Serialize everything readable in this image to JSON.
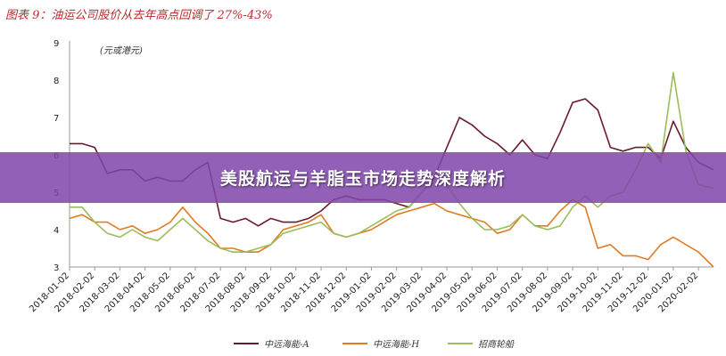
{
  "figure_title": "图表 9：油运公司股价从去年高点回调了 27%-43%",
  "banner": "美股航运与羊脂玉市场走势深度解析",
  "colors": {
    "title": "#c0282d",
    "banner": "#8046aa",
    "series": [
      "#6b1a2e",
      "#e07b23",
      "#9bbd5a"
    ]
  },
  "chart_data": {
    "type": "line",
    "unit_label": "(元或港元)",
    "ylim": [
      3,
      9
    ],
    "yticks": [
      3,
      4,
      5,
      6,
      7,
      8,
      9
    ],
    "x_ticks": [
      "2018-01-02",
      "2018-02-02",
      "2018-03-02",
      "2018-04-02",
      "2018-05-02",
      "2018-06-02",
      "2018-07-02",
      "2018-08-02",
      "2018-09-02",
      "2018-10-02",
      "2018-11-02",
      "2018-12-02",
      "2019-01-02",
      "2019-02-02",
      "2019-03-02",
      "2019-04-02",
      "2019-05-02",
      "2019-06-02",
      "2019-07-02",
      "2019-08-02",
      "2019-09-02",
      "2019-10-02",
      "2019-11-02",
      "2019-12-02",
      "2020-01-02",
      "2020-02-02"
    ],
    "x": [
      0,
      0.5,
      1,
      1.5,
      2,
      2.5,
      3,
      3.5,
      4,
      4.5,
      5,
      5.5,
      6,
      6.5,
      7,
      7.5,
      8,
      8.5,
      9,
      9.5,
      10,
      10.5,
      11,
      11.5,
      12,
      12.5,
      13,
      13.5,
      14,
      14.5,
      15,
      15.5,
      16,
      16.5,
      17,
      17.5,
      18,
      18.5,
      19,
      19.5,
      20,
      20.5,
      21,
      21.5,
      22,
      22.5,
      23,
      23.5,
      24,
      24.5,
      25,
      25.6
    ],
    "series": [
      {
        "name": "中远海能-A",
        "values": [
          6.3,
          6.3,
          6.2,
          5.5,
          5.6,
          5.6,
          5.3,
          5.4,
          5.3,
          5.3,
          5.6,
          5.8,
          4.3,
          4.2,
          4.3,
          4.1,
          4.3,
          4.2,
          4.2,
          4.3,
          4.5,
          4.8,
          4.9,
          4.8,
          4.8,
          4.8,
          4.7,
          4.6,
          5.0,
          5.4,
          6.2,
          7.0,
          6.8,
          6.5,
          6.3,
          6.0,
          6.4,
          6.0,
          5.9,
          6.6,
          7.4,
          7.5,
          7.2,
          6.2,
          6.1,
          6.2,
          6.2,
          5.9,
          6.9,
          6.2,
          5.8,
          5.6
        ]
      },
      {
        "name": "中远海能-H",
        "values": [
          4.3,
          4.4,
          4.2,
          4.2,
          4.0,
          4.1,
          3.9,
          4.0,
          4.2,
          4.6,
          4.2,
          3.9,
          3.5,
          3.5,
          3.4,
          3.4,
          3.6,
          4.0,
          4.1,
          4.2,
          4.4,
          3.9,
          3.8,
          3.9,
          4.0,
          4.2,
          4.4,
          4.5,
          4.6,
          4.7,
          4.5,
          4.4,
          4.3,
          4.2,
          3.9,
          4.0,
          4.4,
          4.1,
          4.1,
          4.5,
          4.8,
          4.6,
          3.5,
          3.6,
          3.3,
          3.3,
          3.2,
          3.6,
          3.8,
          3.6,
          3.4,
          3.0
        ]
      },
      {
        "name": "招商轮船",
        "values": [
          4.6,
          4.6,
          4.2,
          3.9,
          3.8,
          4.0,
          3.8,
          3.7,
          4.0,
          4.3,
          4.0,
          3.7,
          3.5,
          3.4,
          3.4,
          3.5,
          3.6,
          3.9,
          4.0,
          4.1,
          4.2,
          3.9,
          3.8,
          3.9,
          4.1,
          4.3,
          4.5,
          4.6,
          5.0,
          5.3,
          5.2,
          4.7,
          4.3,
          4.0,
          4.0,
          4.1,
          4.4,
          4.1,
          4.0,
          4.1,
          4.6,
          4.9,
          4.6,
          4.9,
          5.0,
          5.6,
          6.3,
          5.8,
          8.2,
          6.1,
          5.2,
          5.1
        ]
      }
    ]
  }
}
